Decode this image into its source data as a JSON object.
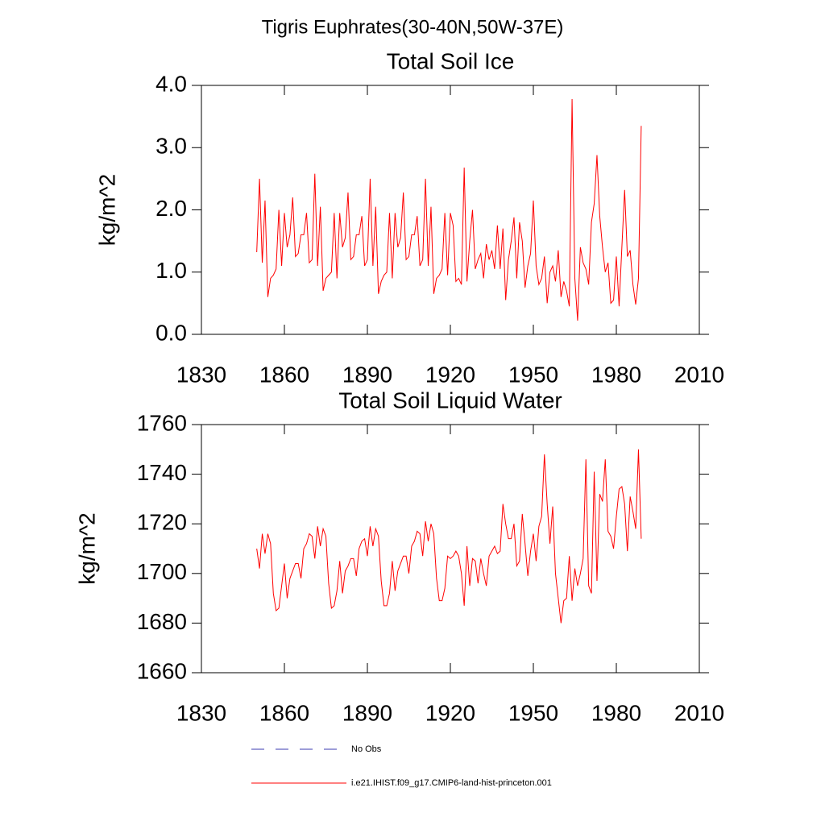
{
  "title": "Tigris Euphrates(30-40N,50W-37E)",
  "legend": [
    {
      "name": "No Obs",
      "color": "#3b3bb0",
      "dash": true
    },
    {
      "name": "i.e21.IHIST.f09_g17.CMIP6-land-hist-princeton.001",
      "color": "#ff0000",
      "dash": false
    }
  ],
  "chart_data": [
    {
      "type": "line",
      "title": "Total Soil Ice",
      "y_label": "kg/m^2",
      "x": [
        1850,
        1851,
        1852,
        1853,
        1854,
        1855,
        1856,
        1857,
        1858,
        1859,
        1860,
        1861,
        1862,
        1863,
        1864,
        1865,
        1866,
        1867,
        1868,
        1869,
        1870,
        1871,
        1872,
        1873,
        1874,
        1875,
        1876,
        1877,
        1878,
        1879,
        1880,
        1881,
        1882,
        1883,
        1884,
        1885,
        1886,
        1887,
        1888,
        1889,
        1890,
        1891,
        1892,
        1893,
        1894,
        1895,
        1896,
        1897,
        1898,
        1899,
        1900,
        1901,
        1902,
        1903,
        1904,
        1905,
        1906,
        1907,
        1908,
        1909,
        1910,
        1911,
        1912,
        1913,
        1914,
        1915,
        1916,
        1917,
        1918,
        1919,
        1920,
        1921,
        1922,
        1923,
        1924,
        1925,
        1926,
        1927,
        1928,
        1929,
        1930,
        1931,
        1932,
        1933,
        1934,
        1935,
        1936,
        1937,
        1938,
        1939,
        1940,
        1941,
        1942,
        1943,
        1944,
        1945,
        1946,
        1947,
        1948,
        1949,
        1950,
        1951,
        1952,
        1953,
        1954,
        1955,
        1956,
        1957,
        1958,
        1959,
        1960,
        1961,
        1962,
        1963,
        1964,
        1965,
        1966,
        1967,
        1968,
        1969,
        1970,
        1971,
        1972,
        1973,
        1974,
        1975,
        1976,
        1977,
        1978,
        1979,
        1980,
        1981,
        1982,
        1983,
        1984,
        1985,
        1986,
        1987,
        1988,
        1989
      ],
      "series": [
        {
          "color": "#ff0000",
          "values": [
            1.32,
            2.5,
            1.15,
            2.15,
            0.6,
            0.9,
            0.95,
            1.05,
            2.0,
            1.1,
            1.95,
            1.4,
            1.6,
            2.2,
            1.25,
            1.3,
            1.6,
            1.6,
            1.95,
            1.15,
            1.2,
            2.58,
            1.1,
            2.05,
            0.7,
            0.9,
            0.95,
            1.0,
            1.95,
            0.9,
            1.95,
            1.4,
            1.55,
            2.28,
            1.2,
            1.25,
            1.6,
            1.6,
            1.9,
            1.1,
            1.2,
            2.5,
            1.1,
            2.05,
            0.65,
            0.85,
            0.95,
            1.0,
            1.95,
            0.9,
            1.95,
            1.4,
            1.55,
            2.28,
            1.2,
            1.25,
            1.6,
            1.6,
            1.9,
            1.1,
            1.2,
            2.5,
            1.1,
            2.05,
            0.65,
            0.9,
            0.95,
            1.05,
            1.95,
            0.95,
            1.95,
            1.75,
            0.85,
            0.9,
            0.8,
            2.68,
            0.85,
            1.5,
            2.0,
            1.05,
            1.2,
            1.3,
            0.9,
            1.45,
            1.2,
            1.35,
            1.05,
            1.75,
            1.05,
            1.7,
            0.55,
            1.2,
            1.5,
            1.88,
            0.9,
            1.8,
            1.5,
            0.75,
            1.1,
            1.3,
            2.15,
            1.1,
            0.8,
            0.9,
            1.25,
            0.5,
            1.0,
            1.1,
            0.85,
            1.35,
            0.6,
            0.85,
            0.7,
            0.45,
            3.78,
            0.9,
            0.22,
            1.4,
            1.15,
            1.05,
            0.8,
            1.8,
            2.1,
            2.88,
            1.9,
            1.4,
            1.0,
            1.15,
            0.5,
            0.55,
            1.25,
            0.45,
            1.4,
            2.32,
            1.25,
            1.35,
            0.8,
            0.48,
            0.9,
            3.35
          ]
        }
      ],
      "xlim": [
        1830,
        2010
      ],
      "xticks": [
        1830,
        1860,
        1890,
        1920,
        1950,
        1980,
        2010
      ],
      "ylim": [
        0,
        4
      ],
      "yticks": [
        {
          "value": 0,
          "label": "0.0"
        },
        {
          "value": 1,
          "label": "1.0"
        },
        {
          "value": 2,
          "label": "2.0"
        },
        {
          "value": 3,
          "label": "3.0"
        },
        {
          "value": 4,
          "label": "4.0"
        }
      ]
    },
    {
      "type": "line",
      "title": "Total Soil Liquid Water",
      "y_label": "kg/m^2",
      "x": [
        1850,
        1851,
        1852,
        1853,
        1854,
        1855,
        1856,
        1857,
        1858,
        1859,
        1860,
        1861,
        1862,
        1863,
        1864,
        1865,
        1866,
        1867,
        1868,
        1869,
        1870,
        1871,
        1872,
        1873,
        1874,
        1875,
        1876,
        1877,
        1878,
        1879,
        1880,
        1881,
        1882,
        1883,
        1884,
        1885,
        1886,
        1887,
        1888,
        1889,
        1890,
        1891,
        1892,
        1893,
        1894,
        1895,
        1896,
        1897,
        1898,
        1899,
        1900,
        1901,
        1902,
        1903,
        1904,
        1905,
        1906,
        1907,
        1908,
        1909,
        1910,
        1911,
        1912,
        1913,
        1914,
        1915,
        1916,
        1917,
        1918,
        1919,
        1920,
        1921,
        1922,
        1923,
        1924,
        1925,
        1926,
        1927,
        1928,
        1929,
        1930,
        1931,
        1932,
        1933,
        1934,
        1935,
        1936,
        1937,
        1938,
        1939,
        1940,
        1941,
        1942,
        1943,
        1944,
        1945,
        1946,
        1947,
        1948,
        1949,
        1950,
        1951,
        1952,
        1953,
        1954,
        1955,
        1956,
        1957,
        1958,
        1959,
        1960,
        1961,
        1962,
        1963,
        1964,
        1965,
        1966,
        1967,
        1968,
        1969,
        1970,
        1971,
        1972,
        1973,
        1974,
        1975,
        1976,
        1977,
        1978,
        1979,
        1980,
        1981,
        1982,
        1983,
        1984,
        1985,
        1986,
        1987,
        1988,
        1989
      ],
      "series": [
        {
          "color": "#ff0000",
          "values": [
            1710,
            1702,
            1716,
            1708,
            1716,
            1712,
            1692,
            1685,
            1686,
            1695,
            1704,
            1690,
            1698,
            1701,
            1704,
            1704,
            1698,
            1710,
            1712,
            1716,
            1715,
            1706,
            1719,
            1711,
            1718,
            1715,
            1696,
            1686,
            1687,
            1693,
            1705,
            1692,
            1701,
            1703,
            1706,
            1706,
            1699,
            1710,
            1713,
            1714,
            1707,
            1719,
            1711,
            1718,
            1715,
            1697,
            1687,
            1687,
            1692,
            1705,
            1693,
            1701,
            1704,
            1707,
            1707,
            1700,
            1711,
            1713,
            1717,
            1716,
            1707,
            1721,
            1713,
            1720,
            1716,
            1698,
            1689,
            1689,
            1694,
            1707,
            1706,
            1707,
            1709,
            1707,
            1700,
            1687,
            1711,
            1695,
            1706,
            1705,
            1696,
            1706,
            1700,
            1695,
            1707,
            1709,
            1711,
            1708,
            1709,
            1728,
            1720,
            1714,
            1714,
            1720,
            1703,
            1705,
            1724,
            1712,
            1699,
            1709,
            1716,
            1705,
            1719,
            1723,
            1748,
            1728,
            1712,
            1727,
            1700,
            1690,
            1680,
            1689,
            1690,
            1707,
            1689,
            1702,
            1695,
            1700,
            1706,
            1746,
            1695,
            1692,
            1741,
            1697,
            1732,
            1729,
            1746,
            1717,
            1715,
            1710,
            1723,
            1734,
            1735,
            1728,
            1709,
            1731,
            1725,
            1718,
            1750,
            1714
          ]
        }
      ],
      "xlim": [
        1830,
        2010
      ],
      "xticks": [
        1830,
        1860,
        1890,
        1920,
        1950,
        1980,
        2010
      ],
      "ylim": [
        1660,
        1760
      ],
      "yticks": [
        1660,
        1680,
        1700,
        1720,
        1740,
        1760
      ]
    }
  ]
}
